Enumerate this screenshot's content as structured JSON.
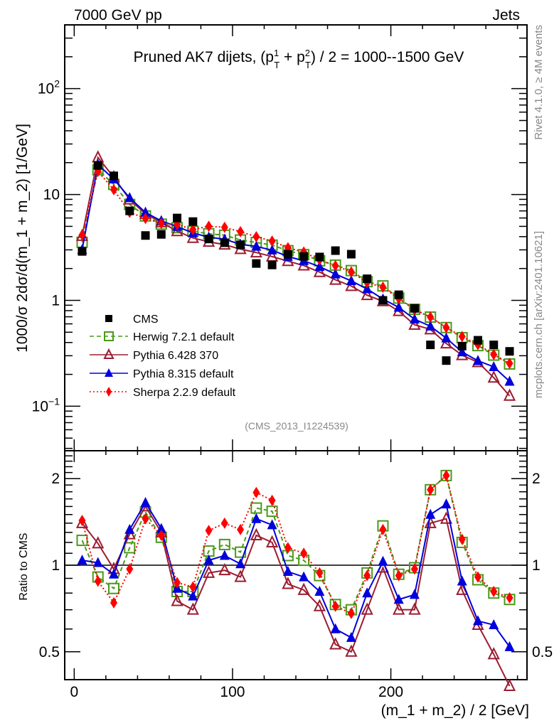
{
  "header": {
    "left_label": "7000 GeV pp",
    "right_label": "Jets"
  },
  "side_labels": {
    "rivet": "Rivet 4.1.0, ≥ 4M events",
    "mcplots": "mcplots.cern.ch [arXiv:2401.10621]"
  },
  "chart_data": {
    "type": "line",
    "title": "Pruned AK7 dijets, (p_T^1 + p_T^2) / 2 = 1000--1500 GeV",
    "title_parts": {
      "prefix": "Pruned AK7 dijets, (p",
      "sup1": "1",
      "sub1": "T",
      "mid": " + p",
      "sup2": "2",
      "sub2": "T",
      "suffix": ") / 2 = 1000--1500 GeV"
    },
    "analysis_label": "(CMS_2013_I1224539)",
    "xlabel": "(m_1 + m_2) / 2 [GeV]",
    "ylabel": "1000/σ  2dσ/d(m_1 + m_2) [1/GeV]",
    "ratio_ylabel": "Ratio to CMS",
    "xlim": [
      -6,
      286
    ],
    "ylim": [
      0.038,
      400
    ],
    "yscale": "log",
    "ratio_ylim": [
      0.4,
      2.5
    ],
    "ratio_yscale": "log",
    "x_ticks": [
      0,
      100,
      200
    ],
    "x_tick_labels": [
      "0",
      "100",
      "200"
    ],
    "y_ticks": [
      {
        "value": 100,
        "base": "10",
        "exp": "2"
      },
      {
        "value": 10,
        "base": "10",
        "exp": ""
      },
      {
        "value": 1,
        "base": "1",
        "exp": ""
      },
      {
        "value": 0.1,
        "base": "10",
        "exp": "−1"
      }
    ],
    "ratio_ticks": [
      {
        "value": 2,
        "label": "2"
      },
      {
        "value": 1,
        "label": "1"
      },
      {
        "value": 0.5,
        "label": "0.5"
      }
    ],
    "legend_position": "lower-left",
    "x": [
      5,
      15,
      25,
      35,
      45,
      55,
      65,
      75,
      85,
      95,
      105,
      115,
      125,
      135,
      145,
      155,
      165,
      175,
      185,
      195,
      205,
      215,
      225,
      235,
      245,
      255,
      265,
      275
    ],
    "data": {
      "name": "CMS",
      "color": "#000000",
      "values": [
        2.9,
        18.8,
        15.0,
        7.0,
        4.1,
        4.2,
        6.0,
        5.55,
        3.8,
        3.5,
        3.35,
        2.23,
        2.16,
        2.73,
        2.6,
        2.57,
        2.95,
        2.73,
        1.6,
        1.0,
        1.13,
        0.84,
        0.38,
        0.27,
        0.37,
        0.42,
        0.38,
        0.33
      ]
    },
    "series": [
      {
        "name": "Herwig 7.2.1 default",
        "color": "#4a9a1a",
        "marker": "open-square",
        "linestyle": "dashed",
        "ratio": [
          1.22,
          0.91,
          0.83,
          1.15,
          1.53,
          1.25,
          0.81,
          0.81,
          1.12,
          1.18,
          1.11,
          1.58,
          1.54,
          1.08,
          1.04,
          0.92,
          0.73,
          0.7,
          0.94,
          1.37,
          0.93,
          0.98,
          1.83,
          2.05,
          1.2,
          0.89,
          0.8,
          0.76
        ]
      },
      {
        "name": "Pythia 6.428 370",
        "color": "#9b1c31",
        "marker": "open-triangle",
        "linestyle": "solid",
        "ratio": [
          1.4,
          1.19,
          0.97,
          1.28,
          1.6,
          1.3,
          0.75,
          0.7,
          0.94,
          0.96,
          0.91,
          1.27,
          1.2,
          0.86,
          0.82,
          0.72,
          0.53,
          0.5,
          0.7,
          0.98,
          0.7,
          0.7,
          1.4,
          1.45,
          0.82,
          0.62,
          0.49,
          0.38
        ]
      },
      {
        "name": "Pythia 8.315 default",
        "color": "#0000dd",
        "marker": "filled-triangle",
        "linestyle": "solid",
        "ratio": [
          1.04,
          1.02,
          0.93,
          1.33,
          1.65,
          1.34,
          0.83,
          0.78,
          1.04,
          1.08,
          1.01,
          1.45,
          1.38,
          0.95,
          0.91,
          0.81,
          0.6,
          0.56,
          0.8,
          1.03,
          0.76,
          0.79,
          1.5,
          1.63,
          0.88,
          0.64,
          0.62,
          0.52
        ]
      },
      {
        "name": "Sherpa 2.2.9 default",
        "color": "#ff0000",
        "marker": "filled-diamond",
        "linestyle": "dotted",
        "ratio": [
          1.43,
          0.88,
          0.74,
          0.97,
          1.45,
          1.27,
          0.87,
          0.84,
          1.32,
          1.4,
          1.33,
          1.79,
          1.68,
          1.15,
          1.1,
          0.94,
          0.72,
          0.68,
          0.92,
          1.33,
          0.92,
          0.97,
          1.83,
          2.05,
          1.23,
          0.91,
          0.81,
          0.77
        ]
      }
    ]
  }
}
